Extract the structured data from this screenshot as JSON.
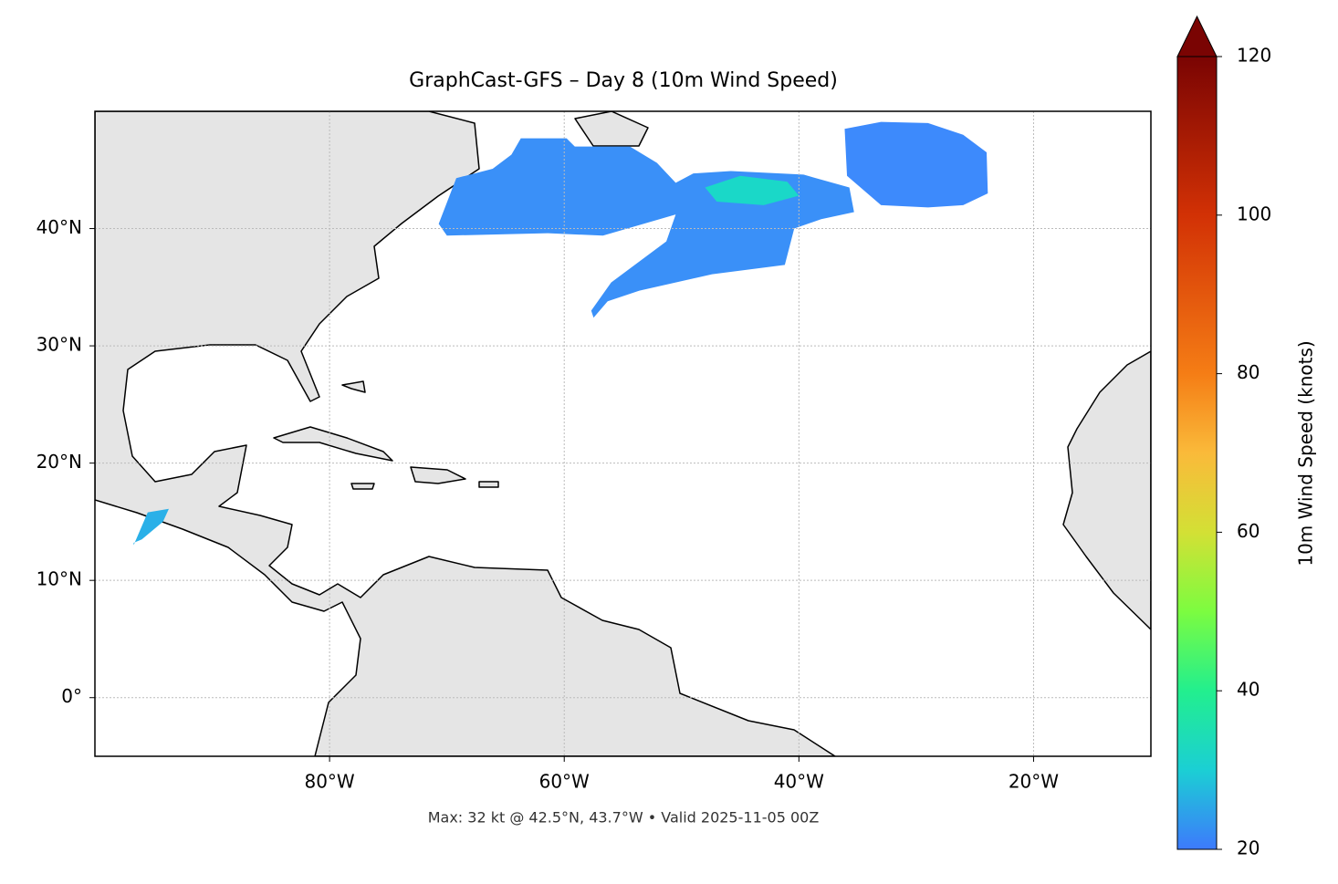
{
  "chart_data": {
    "type": "map",
    "title": "GraphCast-GFS – Day 8 (10m Wind Speed)",
    "footnote": "Max: 32 kt @ 42.5°N, 43.7°W • Valid 2025-11-05 00Z",
    "xlim": [
      -100,
      -10
    ],
    "ylim": [
      -5,
      50
    ],
    "xticks": [
      {
        "value": -80,
        "label": "80°W"
      },
      {
        "value": -60,
        "label": "60°W"
      },
      {
        "value": -40,
        "label": "40°W"
      },
      {
        "value": -20,
        "label": "20°W"
      }
    ],
    "yticks": [
      {
        "value": 0,
        "label": "0°"
      },
      {
        "value": 10,
        "label": "10°N"
      },
      {
        "value": 20,
        "label": "20°N"
      },
      {
        "value": 30,
        "label": "30°N"
      },
      {
        "value": 40,
        "label": "40°N"
      }
    ],
    "grid": true,
    "colorbar": {
      "label": "10m Wind Speed (knots)",
      "lim": [
        20,
        120
      ],
      "ticks": [
        20,
        40,
        60,
        80,
        100,
        120
      ],
      "extend": "max"
    },
    "wind_areas": [
      {
        "value": 25,
        "color": "#3a90f8",
        "lon": [
          -70.7,
          -69.2,
          -66.1,
          -64.5,
          -63.7,
          -59.8,
          -59.1,
          -54.4,
          -52.1,
          -50.5,
          -49.0,
          -45.8,
          -39.6,
          -35.7,
          -35.3,
          -38.1,
          -40.4,
          -41.2,
          -47.4,
          -53.6,
          -56.3,
          -57.5,
          -57.7,
          -56.0,
          -51.3,
          -50.5,
          -56.7,
          -61.4,
          -70.0
        ],
        "lat": [
          40.4,
          44.3,
          45.1,
          46.3,
          47.7,
          47.7,
          47.0,
          47.0,
          45.6,
          43.9,
          44.7,
          44.9,
          44.6,
          43.5,
          41.4,
          40.8,
          40.0,
          36.9,
          36.1,
          34.7,
          33.8,
          32.4,
          33.0,
          35.4,
          38.9,
          41.2,
          39.4,
          39.6,
          39.4
        ]
      },
      {
        "value": 32,
        "color": "#1ad8c8",
        "lon": [
          -48,
          -45,
          -41,
          -40,
          -43,
          -47
        ],
        "lat": [
          43.5,
          44.5,
          44,
          42.8,
          42,
          42.3
        ]
      },
      {
        "value": 24,
        "color": "#3d8afc",
        "lon": [
          -36.1,
          -33,
          -29,
          -26,
          -24,
          -23.9,
          -26,
          -29,
          -33,
          -35.9
        ],
        "lat": [
          48.5,
          49.1,
          49,
          48,
          46.5,
          43,
          42,
          41.8,
          42.0,
          44.5
        ]
      },
      {
        "value": 27,
        "color": "#2ab0e8",
        "lon": [
          -96.7,
          -95.5,
          -93.7,
          -94.2,
          -96.0,
          -96.7
        ],
        "lat": [
          13.0,
          15.8,
          16.1,
          15.0,
          13.5,
          13.2
        ]
      }
    ]
  }
}
